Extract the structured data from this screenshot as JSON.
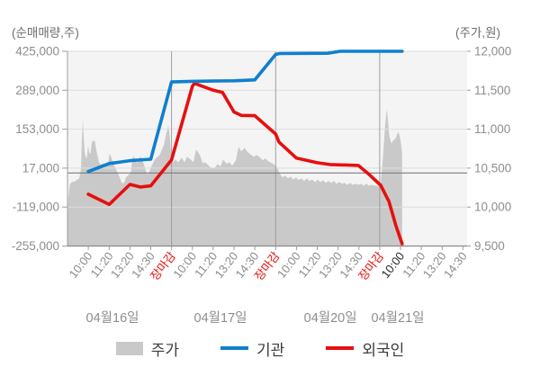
{
  "chart_data": {
    "type": "mixed",
    "description": "Intraday stock widget: gray area = stock price (right axis, won), blue line = institutions cumulative net buy, red line = foreigners cumulative net buy (left axis, shares)",
    "left_axis": {
      "title": "(순매매량,주)",
      "max": 425000,
      "min": -255000,
      "ticks": [
        425000,
        289000,
        153000,
        17000,
        -119000,
        -255000
      ],
      "tick_labels": [
        "425,000",
        "289,000",
        "153,000",
        "17,000",
        "-119,000",
        "-255,000"
      ],
      "zero_line": 0
    },
    "right_axis": {
      "title": "(주가,원)",
      "max": 12000,
      "min": 9500,
      "ticks": [
        12000,
        11500,
        11000,
        10500,
        10000,
        9500
      ],
      "tick_labels": [
        "12,000",
        "11,500",
        "11,000",
        "10,500",
        "10,000",
        "9,500"
      ]
    },
    "x_axis": {
      "unit_max": 19.2,
      "day_boundaries": [
        5,
        10,
        15
      ],
      "ticks": [
        {
          "label": "10:00",
          "kind": "time"
        },
        {
          "label": "11:20",
          "kind": "time"
        },
        {
          "label": "13:20",
          "kind": "time"
        },
        {
          "label": "14:30",
          "kind": "time"
        },
        {
          "label": "장마감",
          "kind": "close"
        },
        {
          "label": "10:00",
          "kind": "time"
        },
        {
          "label": "11:20",
          "kind": "time"
        },
        {
          "label": "13:20",
          "kind": "time"
        },
        {
          "label": "14:30",
          "kind": "time"
        },
        {
          "label": "장마감",
          "kind": "close"
        },
        {
          "label": "10:00",
          "kind": "time"
        },
        {
          "label": "11:20",
          "kind": "time"
        },
        {
          "label": "13:20",
          "kind": "time"
        },
        {
          "label": "14:30",
          "kind": "time"
        },
        {
          "label": "장마감",
          "kind": "close"
        },
        {
          "label": "10:00",
          "kind": "now"
        },
        {
          "label": "11:20",
          "kind": "time"
        },
        {
          "label": "13:20",
          "kind": "time"
        },
        {
          "label": "14:30",
          "kind": "time"
        }
      ],
      "dates": [
        {
          "label": "04월16일",
          "u": 2.16
        },
        {
          "label": "04월17일",
          "u": 7.35
        },
        {
          "label": "04월20일",
          "u": 12.63
        },
        {
          "label": "04월21일",
          "u": 15.87
        }
      ]
    },
    "colors": {
      "plot_bg": "#f4f4f4",
      "h_gridline": "#dddddd",
      "day_boundary": "#9e9e9e",
      "zero_line": "#7c7c7c",
      "axis_line": "#8a8a8a",
      "tick_text": "#8d8d8d",
      "time_label": "#8d8d8d",
      "close_label": "#e8100a",
      "now_label": "#2e2e2e",
      "date_label": "#8d8d8d"
    },
    "series": {
      "price": {
        "name": "주가",
        "type": "area",
        "axis": "right",
        "color": "#c9c9c9",
        "points": [
          [
            0,
            9510
          ],
          [
            0.02,
            9890
          ],
          [
            0.04,
            10110
          ],
          [
            0.09,
            10250
          ],
          [
            0.13,
            10300
          ],
          [
            0.22,
            10320
          ],
          [
            0.35,
            10330
          ],
          [
            0.48,
            10355
          ],
          [
            0.56,
            10370
          ],
          [
            0.65,
            10485
          ],
          [
            0.69,
            10865
          ],
          [
            0.74,
            11120
          ],
          [
            0.78,
            10900
          ],
          [
            0.82,
            10715
          ],
          [
            0.86,
            10655
          ],
          [
            0.93,
            10625
          ],
          [
            0.99,
            10795
          ],
          [
            1.04,
            10705
          ],
          [
            1.1,
            10680
          ],
          [
            1.17,
            10830
          ],
          [
            1.25,
            10855
          ],
          [
            1.32,
            10845
          ],
          [
            1.38,
            10740
          ],
          [
            1.45,
            10655
          ],
          [
            1.51,
            10575
          ],
          [
            1.6,
            10540
          ],
          [
            1.69,
            10565
          ],
          [
            1.77,
            10530
          ],
          [
            1.86,
            10565
          ],
          [
            1.95,
            10540
          ],
          [
            2.01,
            10680
          ],
          [
            2.08,
            10655
          ],
          [
            2.16,
            10590
          ],
          [
            2.25,
            10530
          ],
          [
            2.34,
            10485
          ],
          [
            2.42,
            10435
          ],
          [
            2.51,
            10380
          ],
          [
            2.59,
            10320
          ],
          [
            2.68,
            10300
          ],
          [
            2.75,
            10330
          ],
          [
            2.81,
            10380
          ],
          [
            2.9,
            10405
          ],
          [
            2.98,
            10425
          ],
          [
            3.05,
            10450
          ],
          [
            3.11,
            10600
          ],
          [
            3.18,
            10655
          ],
          [
            3.24,
            10625
          ],
          [
            3.33,
            10565
          ],
          [
            3.42,
            10600
          ],
          [
            3.5,
            10655
          ],
          [
            3.59,
            10610
          ],
          [
            3.68,
            10540
          ],
          [
            3.76,
            10470
          ],
          [
            3.85,
            10415
          ],
          [
            3.94,
            10460
          ],
          [
            4.02,
            10520
          ],
          [
            4.11,
            10565
          ],
          [
            4.19,
            10610
          ],
          [
            4.28,
            10635
          ],
          [
            4.37,
            10655
          ],
          [
            4.45,
            10680
          ],
          [
            4.54,
            10740
          ],
          [
            4.63,
            10795
          ],
          [
            4.71,
            10900
          ],
          [
            4.8,
            10995
          ],
          [
            4.84,
            11050
          ],
          [
            4.89,
            10970
          ],
          [
            4.93,
            10845
          ],
          [
            4.97,
            10690
          ],
          [
            5.06,
            10575
          ],
          [
            5.19,
            10610
          ],
          [
            5.32,
            10575
          ],
          [
            5.49,
            10635
          ],
          [
            5.62,
            10575
          ],
          [
            5.75,
            10645
          ],
          [
            5.92,
            10610
          ],
          [
            6.05,
            10575
          ],
          [
            6.18,
            10740
          ],
          [
            6.36,
            10670
          ],
          [
            6.49,
            10565
          ],
          [
            6.62,
            10575
          ],
          [
            6.79,
            10530
          ],
          [
            6.92,
            10495
          ],
          [
            7.05,
            10495
          ],
          [
            7.22,
            10555
          ],
          [
            7.35,
            10520
          ],
          [
            7.48,
            10610
          ],
          [
            7.65,
            10555
          ],
          [
            7.78,
            10575
          ],
          [
            7.91,
            10530
          ],
          [
            8.09,
            10600
          ],
          [
            8.22,
            10775
          ],
          [
            8.35,
            10715
          ],
          [
            8.52,
            10760
          ],
          [
            8.65,
            10705
          ],
          [
            8.78,
            10680
          ],
          [
            8.95,
            10645
          ],
          [
            9.08,
            10670
          ],
          [
            9.21,
            10645
          ],
          [
            9.38,
            10600
          ],
          [
            9.51,
            10625
          ],
          [
            9.64,
            10590
          ],
          [
            9.82,
            10565
          ],
          [
            9.95,
            10540
          ],
          [
            10.08,
            10505
          ],
          [
            10.21,
            10425
          ],
          [
            10.33,
            10380
          ],
          [
            10.46,
            10405
          ],
          [
            10.59,
            10370
          ],
          [
            10.72,
            10390
          ],
          [
            10.85,
            10355
          ],
          [
            10.98,
            10380
          ],
          [
            11.11,
            10345
          ],
          [
            11.24,
            10370
          ],
          [
            11.37,
            10335
          ],
          [
            11.5,
            10370
          ],
          [
            11.63,
            10335
          ],
          [
            11.76,
            10355
          ],
          [
            11.89,
            10320
          ],
          [
            12.02,
            10355
          ],
          [
            12.15,
            10320
          ],
          [
            12.28,
            10345
          ],
          [
            12.41,
            10310
          ],
          [
            12.54,
            10335
          ],
          [
            12.67,
            10310
          ],
          [
            12.8,
            10335
          ],
          [
            12.93,
            10300
          ],
          [
            13.06,
            10320
          ],
          [
            13.19,
            10300
          ],
          [
            13.32,
            10310
          ],
          [
            13.45,
            10285
          ],
          [
            13.58,
            10310
          ],
          [
            13.71,
            10285
          ],
          [
            13.84,
            10300
          ],
          [
            13.97,
            10285
          ],
          [
            14.1,
            10300
          ],
          [
            14.23,
            10275
          ],
          [
            14.36,
            10300
          ],
          [
            14.49,
            10275
          ],
          [
            14.62,
            10285
          ],
          [
            14.75,
            10275
          ],
          [
            14.88,
            10275
          ],
          [
            14.96,
            10265
          ],
          [
            15.05,
            10310
          ],
          [
            15.14,
            10575
          ],
          [
            15.22,
            10900
          ],
          [
            15.26,
            11040
          ],
          [
            15.31,
            11180
          ],
          [
            15.35,
            11250
          ],
          [
            15.39,
            11130
          ],
          [
            15.44,
            10970
          ],
          [
            15.48,
            10890
          ],
          [
            15.57,
            10810
          ],
          [
            15.61,
            10845
          ],
          [
            15.7,
            10865
          ],
          [
            15.78,
            10890
          ],
          [
            15.83,
            10935
          ],
          [
            15.91,
            10960
          ],
          [
            15.96,
            10910
          ],
          [
            16,
            10855
          ],
          [
            16.04,
            10785
          ],
          [
            16.08,
            10690
          ]
        ]
      },
      "institution": {
        "name": "기관",
        "type": "line",
        "axis": "left",
        "color": "#0f7fce",
        "points": [
          [
            1,
            5000
          ],
          [
            2,
            33000
          ],
          [
            3,
            43000
          ],
          [
            4,
            48000
          ],
          [
            5,
            318000
          ],
          [
            6,
            320000
          ],
          [
            7,
            321000
          ],
          [
            8,
            322000
          ],
          [
            9,
            325000
          ],
          [
            10,
            414000
          ],
          [
            10.2,
            417000
          ],
          [
            12.5,
            418000
          ],
          [
            13.1,
            425000
          ],
          [
            16.08,
            425000
          ]
        ]
      },
      "foreigner": {
        "name": "외국인",
        "type": "line",
        "axis": "left",
        "color": "#e60f0f",
        "points": [
          [
            1,
            -74000
          ],
          [
            2,
            -110000
          ],
          [
            3,
            -40000
          ],
          [
            3.5,
            -49000
          ],
          [
            4,
            -45000
          ],
          [
            5,
            46000
          ],
          [
            6,
            303000
          ],
          [
            6.1,
            313000
          ],
          [
            7,
            289000
          ],
          [
            7.45,
            281000
          ],
          [
            8,
            213000
          ],
          [
            8.35,
            201000
          ],
          [
            9,
            200000
          ],
          [
            10,
            136000
          ],
          [
            10.16,
            108000
          ],
          [
            11,
            52000
          ],
          [
            12,
            36000
          ],
          [
            12.6,
            29500
          ],
          [
            13.97,
            26500
          ],
          [
            14.49,
            -5000
          ],
          [
            15.05,
            -43000
          ],
          [
            15.44,
            -99000
          ],
          [
            15.78,
            -184000
          ],
          [
            16.08,
            -247000
          ]
        ]
      }
    }
  }
}
